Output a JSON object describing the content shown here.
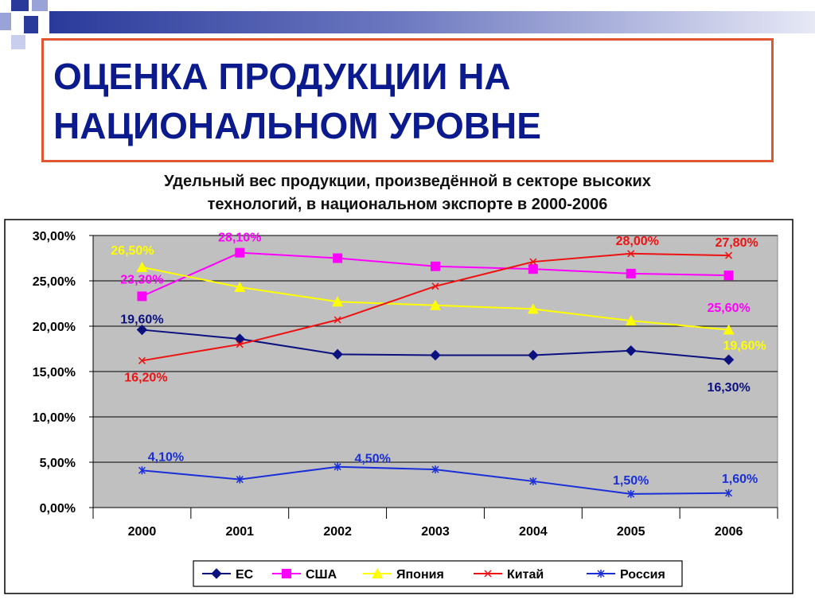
{
  "slide": {
    "title_line1": "ОЦЕНКА ПРОДУКЦИИ НА",
    "title_line2": "НАЦИОНАЛЬНОМ УРОВНЕ",
    "subtitle_line1": "Удельный вес продукции, произведённой в секторе высоких",
    "subtitle_line2": "технологий, в национальном экспорте в 2000-2006",
    "accent_colors": {
      "title": "#0b1a8c",
      "frame": "#e0562f",
      "deco": "#2a3a9a"
    }
  },
  "chart_data": {
    "type": "line",
    "categories": [
      "2000",
      "2001",
      "2002",
      "2003",
      "2004",
      "2005",
      "2006"
    ],
    "ylim": [
      0,
      30
    ],
    "ytick_labels": [
      "0,00%",
      "5,00%",
      "10,00%",
      "15,00%",
      "20,00%",
      "25,00%",
      "30,00%"
    ],
    "grid": true,
    "legend_position": "bottom",
    "plot_background": "#c0c0c0",
    "series": [
      {
        "name": "ЕС",
        "color": "#0c1180",
        "marker": "diamond",
        "values": [
          19.6,
          18.6,
          16.9,
          16.8,
          16.8,
          17.3,
          16.3
        ],
        "point_labels": [
          "19,60%",
          "",
          "",
          "",
          "",
          "",
          "16,30%"
        ]
      },
      {
        "name": "США",
        "color": "#ff00ff",
        "marker": "square",
        "values": [
          23.3,
          28.1,
          27.5,
          26.6,
          26.3,
          25.8,
          25.6
        ],
        "point_labels": [
          "23,30%",
          "28,10%",
          "",
          "",
          "",
          "",
          "25,60%"
        ]
      },
      {
        "name": "Япония",
        "color": "#ffff00",
        "marker": "triangle",
        "values": [
          26.5,
          24.3,
          22.7,
          22.3,
          21.9,
          20.6,
          19.6
        ],
        "point_labels": [
          "26,50%",
          "",
          "",
          "",
          "",
          "",
          "19,60%"
        ]
      },
      {
        "name": "Китай",
        "color": "#ee1111",
        "marker": "x",
        "values": [
          16.2,
          18.0,
          20.7,
          24.4,
          27.1,
          28.0,
          27.8
        ],
        "point_labels": [
          "16,20%",
          "",
          "",
          "",
          "",
          "28,00%",
          "27,80%"
        ]
      },
      {
        "name": "Россия",
        "color": "#1a2fd8",
        "marker": "star",
        "values": [
          4.1,
          3.1,
          4.5,
          4.2,
          2.9,
          1.5,
          1.6
        ],
        "point_labels": [
          "4,10%",
          "",
          "4,50%",
          "",
          "",
          "1,50%",
          "1,60%"
        ]
      }
    ]
  }
}
